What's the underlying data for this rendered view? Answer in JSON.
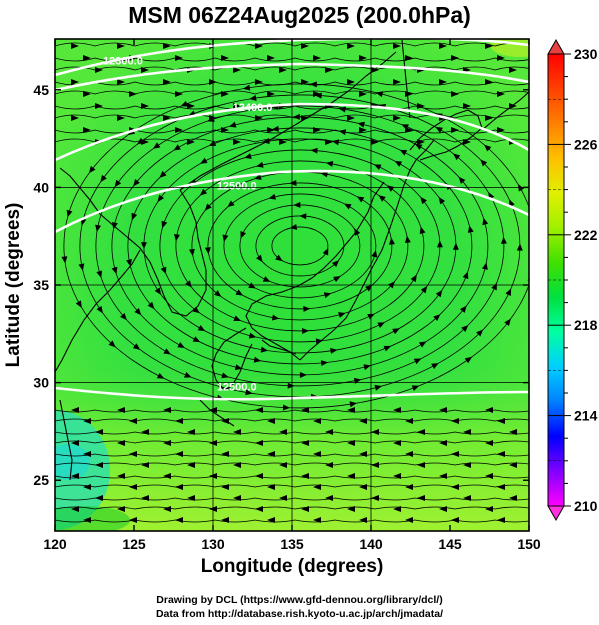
{
  "title": "MSM 06Z24Aug2025 (200.0hPa)",
  "chart_data": {
    "type": "map-contour-streamline",
    "xlabel": "Longitude (degrees)",
    "ylabel": "Latitude  (degrees)",
    "xlim": [
      120,
      150
    ],
    "ylim": [
      22.4,
      47.6
    ],
    "x_ticks": [
      120,
      125,
      130,
      135,
      140,
      145,
      150
    ],
    "y_ticks": [
      25,
      30,
      35,
      40,
      45
    ],
    "gridlines": {
      "x": [
        130,
        135,
        140
      ],
      "y": [
        30,
        35,
        40
      ]
    },
    "colorbar": {
      "range": [
        210,
        230
      ],
      "ticks": [
        210,
        214,
        218,
        222,
        226,
        230
      ],
      "colors": [
        "#ff00ff",
        "#8000ff",
        "#0000ff",
        "#0080ff",
        "#00d0ff",
        "#00ffa0",
        "#00e040",
        "#40e000",
        "#a0f000",
        "#e0f000",
        "#ffc000",
        "#ff8000",
        "#ff4000",
        "#ff0000"
      ]
    },
    "contours": [
      {
        "label": "12300.0",
        "label_lon": 124.3,
        "label_lat": 46.3
      },
      {
        "label": "12400.0",
        "label_lon": 132.5,
        "label_lat": 43.9
      },
      {
        "label": "12500.0",
        "label_lon": 131.5,
        "label_lat": 39.9
      },
      {
        "label": "12500.0",
        "label_lon": 131.5,
        "label_lat": 29.6
      }
    ],
    "high_center": {
      "lon": 135.5,
      "lat": 37.0
    }
  },
  "credits": [
    "Drawing by DCL (https://www.gfd-dennou.org/library/dcl/)",
    "Data from http://database.rish.kyoto-u.ac.jp/arch/jmadata/"
  ]
}
